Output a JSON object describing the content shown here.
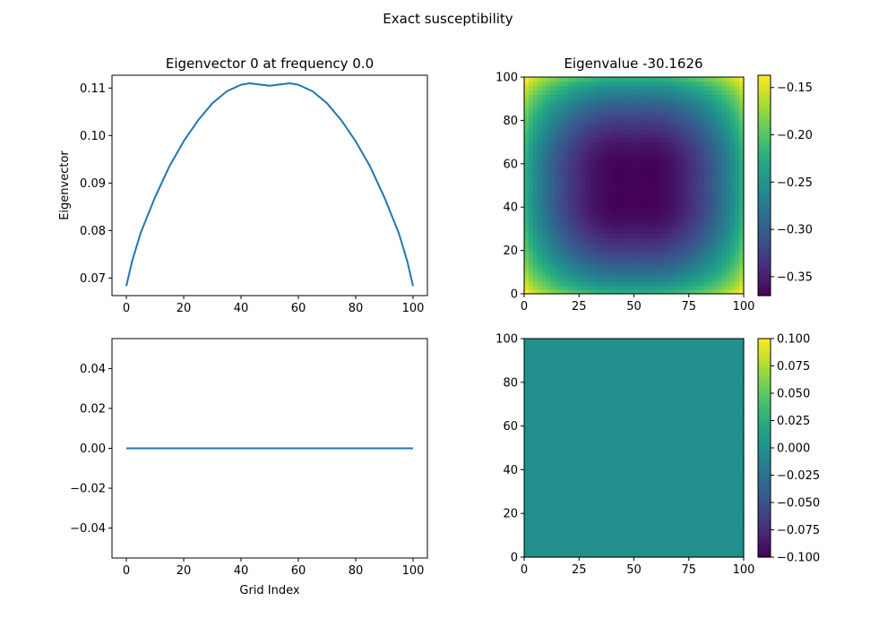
{
  "figure": {
    "suptitle": "Exact susceptibility"
  },
  "colors": {
    "line": "#1f77b4",
    "axes": "#000000",
    "background": "#ffffff"
  },
  "chart_data": [
    {
      "type": "line",
      "title": "Eigenvector 0 at frequency 0.0",
      "xlabel": "",
      "ylabel": "Eigenvector",
      "xlim": [
        -5,
        105
      ],
      "ylim": [
        0.0663,
        0.1127
      ],
      "xticks": [
        0,
        20,
        40,
        60,
        80,
        100
      ],
      "yticks": [
        0.07,
        0.08,
        0.09,
        0.1,
        0.11
      ],
      "ytick_labels": [
        "0.07",
        "0.08",
        "0.09",
        "0.10",
        "0.11"
      ],
      "series": [
        {
          "x": [
            0,
            2,
            5,
            10,
            15,
            20,
            25,
            30,
            35,
            40,
            43,
            46,
            50,
            54,
            57,
            60,
            65,
            70,
            75,
            80,
            85,
            90,
            95,
            98,
            100
          ],
          "y": [
            0.0683,
            0.0735,
            0.0795,
            0.087,
            0.0935,
            0.0988,
            0.1032,
            0.1068,
            0.1093,
            0.1107,
            0.111,
            0.1108,
            0.1105,
            0.1108,
            0.111,
            0.1107,
            0.1093,
            0.1068,
            0.1032,
            0.0988,
            0.0935,
            0.087,
            0.0795,
            0.0735,
            0.0683
          ]
        }
      ],
      "grid": false
    },
    {
      "type": "heatmap",
      "title": "Eigenvalue -30.1626",
      "xlim": [
        0,
        100
      ],
      "ylim": [
        0,
        100
      ],
      "xticks": [
        0,
        25,
        50,
        75,
        100
      ],
      "yticks": [
        0,
        20,
        40,
        60,
        80,
        100
      ],
      "colormap": "viridis",
      "vmin": -0.37,
      "vmax": -0.137,
      "pattern": "outer product of eigenvector 0 with itself, negated (darkest at center, brightest at corners)",
      "colorbar_ticks": [
        -0.35,
        -0.3,
        -0.25,
        -0.2,
        -0.15
      ],
      "colorbar_tick_labels": [
        "−0.35",
        "−0.30",
        "−0.25",
        "−0.20",
        "−0.15"
      ]
    },
    {
      "type": "line",
      "title": "",
      "xlabel": "Grid Index",
      "ylabel": "",
      "xlim": [
        -5,
        105
      ],
      "ylim": [
        -0.055,
        0.055
      ],
      "xticks": [
        0,
        20,
        40,
        60,
        80,
        100
      ],
      "yticks": [
        -0.04,
        -0.02,
        0,
        0.02,
        0.04
      ],
      "ytick_labels": [
        "−0.04",
        "−0.02",
        "0.00",
        "0.02",
        "0.04"
      ],
      "series": [
        {
          "x": [
            0,
            100
          ],
          "y": [
            0,
            0
          ]
        }
      ],
      "grid": false
    },
    {
      "type": "heatmap",
      "title": "",
      "xlim": [
        0,
        100
      ],
      "ylim": [
        0,
        100
      ],
      "xticks": [
        0,
        25,
        50,
        75,
        100
      ],
      "yticks": [
        0,
        20,
        40,
        60,
        80,
        100
      ],
      "colormap": "viridis",
      "vmin": -0.1,
      "vmax": 0.1,
      "uniform_value": 0,
      "colorbar_ticks": [
        -0.1,
        -0.075,
        -0.05,
        -0.025,
        0,
        0.025,
        0.05,
        0.075,
        0.1
      ],
      "colorbar_tick_labels": [
        "−0.100",
        "−0.075",
        "−0.050",
        "−0.025",
        "0.000",
        "0.025",
        "0.050",
        "0.075",
        "0.100"
      ]
    }
  ]
}
